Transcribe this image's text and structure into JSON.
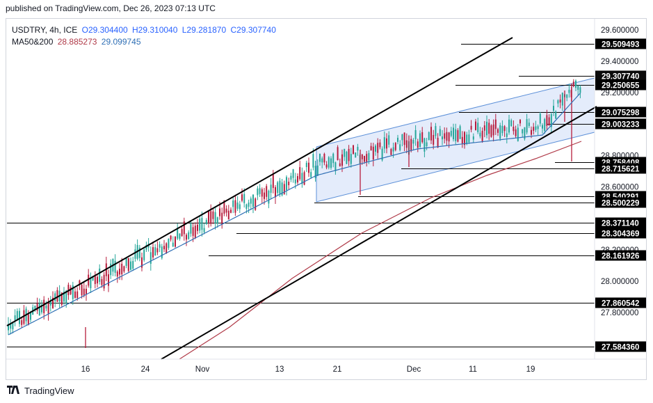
{
  "header": {
    "published": "published on TradingView.com, Dec 26, 2023 07:13 UTC"
  },
  "legend": {
    "symbol": "USDTRY, 4h, ICE",
    "open": "O29.304400",
    "high": "H29.310040",
    "low": "L29.281870",
    "close": "C29.307740",
    "ma_label": "MA50&200",
    "ma50": "28.885273",
    "ma200": "29.099745"
  },
  "footer": {
    "brand": "TradingView"
  },
  "chart_data": {
    "type": "candlestick",
    "symbol": "USDTRY",
    "interval": "4h",
    "ylim": [
      27.5,
      29.65
    ],
    "y_ticks": [
      "29.600000",
      "29.400000",
      "29.200000",
      "28.800000",
      "28.600000",
      "28.200000",
      "28.000000",
      "27.800000"
    ],
    "x_ticks": [
      {
        "label": "16",
        "x": 123
      },
      {
        "label": "24",
        "x": 209
      },
      {
        "label": "Nov",
        "x": 291
      },
      {
        "label": "13",
        "x": 402
      },
      {
        "label": "21",
        "x": 485
      },
      {
        "label": "Dec",
        "x": 595
      },
      {
        "label": "11",
        "x": 680
      },
      {
        "label": "19",
        "x": 763
      }
    ],
    "horizontal_levels": [
      {
        "price": 29.509493,
        "label": "29.509493",
        "x_start": 663
      },
      {
        "price": 29.30774,
        "label": "29.307740",
        "x_start": 746,
        "highlight": true
      },
      {
        "price": 29.250655,
        "label": "29.250655",
        "x_start": 655
      },
      {
        "price": 29.075298,
        "label": "29.075298",
        "x_start": 660
      },
      {
        "price": 29.003233,
        "label": "29.003233",
        "x_start": 787
      },
      {
        "price": 28.758408,
        "label": "28.758408",
        "x_start": 798
      },
      {
        "price": 28.715621,
        "label": "28.715621",
        "x_start": 577
      },
      {
        "price": 28.540291,
        "label": "28.540291",
        "x_start": 515
      },
      {
        "price": 28.500229,
        "label": "28.500229",
        "x_start": 452
      },
      {
        "price": 28.37114,
        "label": "28.371140",
        "x_start": 10
      },
      {
        "price": 28.304369,
        "label": "28.304369",
        "x_start": 340
      },
      {
        "price": 28.161926,
        "label": "28.161926",
        "x_start": 300
      },
      {
        "price": 27.860542,
        "label": "27.860542",
        "x_start": 10
      },
      {
        "price": 27.58436,
        "label": "27.584360",
        "x_start": 10
      }
    ],
    "series": [
      {
        "name": "MA50",
        "value": "28.885273"
      },
      {
        "name": "MA200",
        "value": "29.099745"
      }
    ],
    "colors": {
      "up": "#26a69a",
      "down": "#b71c3c",
      "ma50": "#2f6fb5",
      "ma200": "#b03a48",
      "channel_fill": "#dbe6fa",
      "channel_line": "#5b8fd8"
    }
  }
}
